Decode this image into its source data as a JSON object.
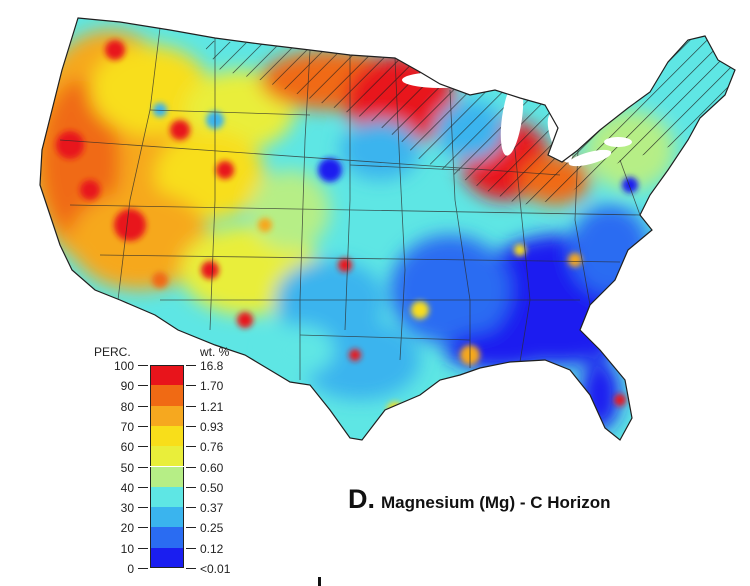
{
  "panel": {
    "letter": "D.",
    "title": "Magnesium (Mg) - C Horizon"
  },
  "legend": {
    "left_header": "PERC.",
    "right_header": "wt. %",
    "rows": [
      {
        "perc": "100",
        "wt": "16.8",
        "color": "#e8141b"
      },
      {
        "perc": "90",
        "wt": "1.70",
        "color": "#f06a14"
      },
      {
        "perc": "80",
        "wt": "1.21",
        "color": "#f6a81f"
      },
      {
        "perc": "70",
        "wt": "0.93",
        "color": "#f8de1a"
      },
      {
        "perc": "60",
        "wt": "0.76",
        "color": "#e9ee3a"
      },
      {
        "perc": "50",
        "wt": "0.60",
        "color": "#b6ee86"
      },
      {
        "perc": "40",
        "wt": "0.50",
        "color": "#5ee6e4"
      },
      {
        "perc": "30",
        "wt": "0.37",
        "color": "#3ab4ee"
      },
      {
        "perc": "20",
        "wt": "0.25",
        "color": "#2a6cf2"
      },
      {
        "perc": "10",
        "wt": "0.12",
        "color": "#1a1ef0"
      },
      {
        "perc": "0",
        "wt": "<0.01",
        "color": ""
      }
    ]
  },
  "map": {
    "subject": "conterminous United States",
    "hatched_regions": "glaciated northern states"
  }
}
